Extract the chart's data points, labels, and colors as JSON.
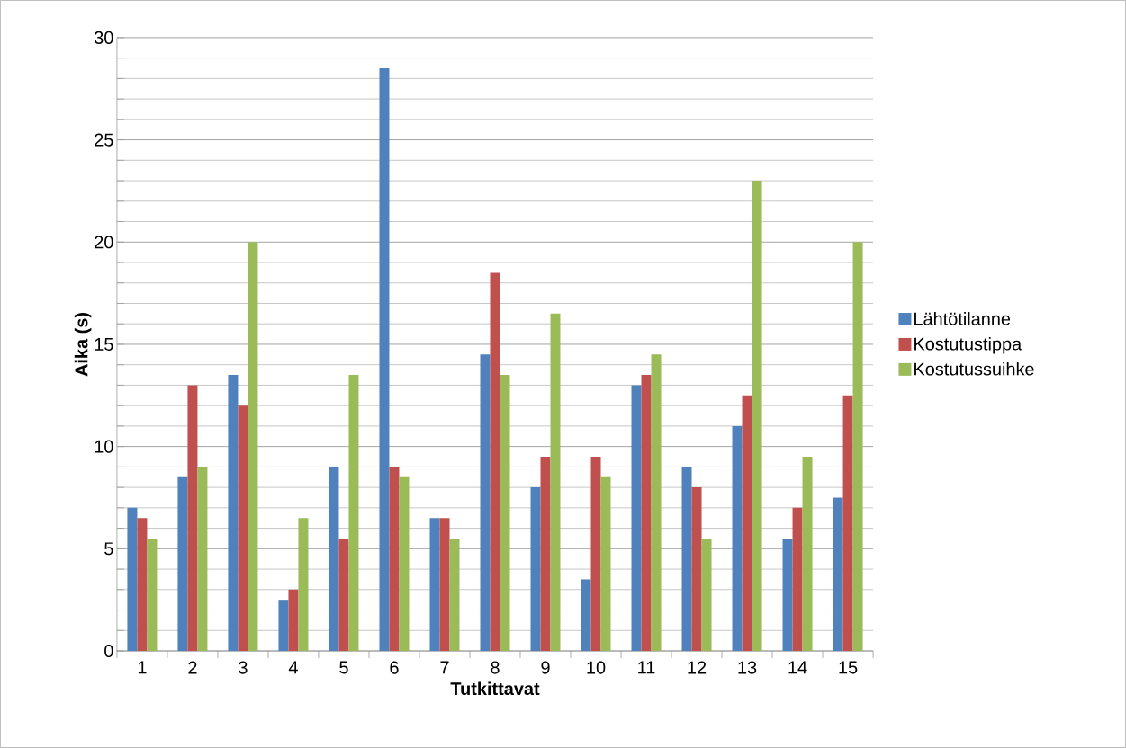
{
  "chart_data": {
    "type": "bar",
    "xlabel": "Tutkittavat",
    "ylabel": "Aika (s)",
    "categories": [
      "1",
      "2",
      "3",
      "4",
      "5",
      "6",
      "7",
      "8",
      "9",
      "10",
      "11",
      "12",
      "13",
      "14",
      "15"
    ],
    "series": [
      {
        "name": "Lähtötilanne",
        "color": "#4f81bd",
        "values": [
          7,
          8.5,
          13.5,
          2.5,
          9,
          28.5,
          6.5,
          14.5,
          8,
          3.5,
          13,
          9,
          11,
          5.5,
          7.5
        ]
      },
      {
        "name": "Kostutustippa",
        "color": "#c0504d",
        "values": [
          6.5,
          13,
          12,
          3,
          5.5,
          9,
          6.5,
          18.5,
          9.5,
          9.5,
          13.5,
          8,
          12.5,
          7,
          12.5
        ]
      },
      {
        "name": "Kostutussuihke",
        "color": "#9bbb59",
        "values": [
          5.5,
          9,
          20,
          6.5,
          13.5,
          8.5,
          5.5,
          13.5,
          16.5,
          8.5,
          14.5,
          5.5,
          23,
          9.5,
          20
        ]
      }
    ],
    "ylim": [
      0,
      30
    ],
    "yticks": [
      0,
      5,
      10,
      15,
      20,
      25,
      30
    ],
    "grid": "y",
    "legend": "right"
  }
}
